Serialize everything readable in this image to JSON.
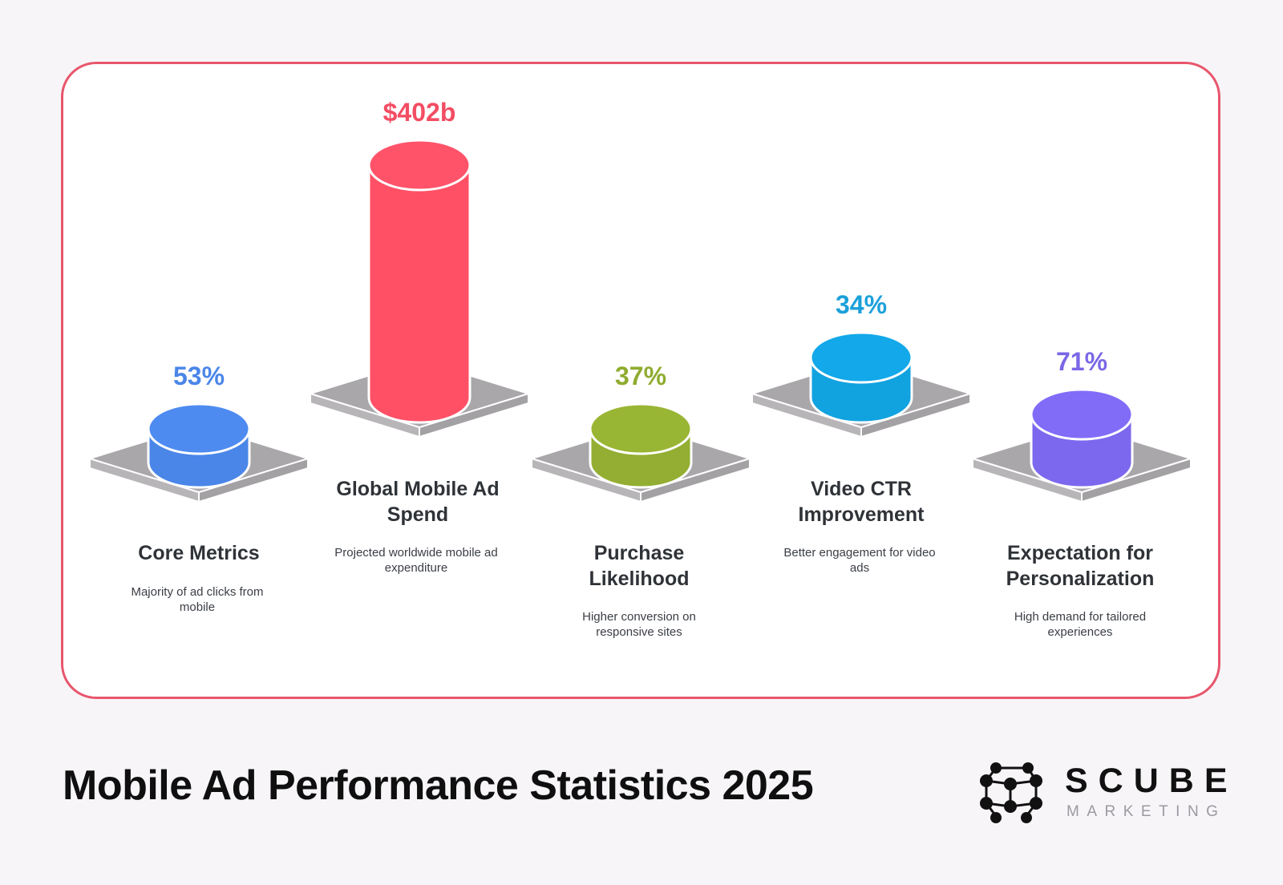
{
  "title": "Mobile Ad Performance Statistics 2025",
  "brand": {
    "name": "SCUBE",
    "sub": "MARKETING",
    "logo_icon": "molecule-cube-icon"
  },
  "chart_data": {
    "type": "bar",
    "style": "3d-cylinders-on-platforms",
    "categories": [
      "Core Metrics",
      "Global Mobile Ad Spend",
      "Purchase Likelihood",
      "Video CTR Improvement",
      "Expectation for Personalization"
    ],
    "value_labels": [
      "53%",
      "$402b",
      "37%",
      "34%",
      "71%"
    ],
    "values": [
      53,
      402,
      37,
      34,
      71
    ],
    "units": [
      "%",
      "billion USD",
      "%",
      "%",
      "%"
    ],
    "descriptions": [
      "Majority of ad clicks from mobile",
      "Projected worldwide mobile ad expenditure",
      "Higher conversion on responsive sites",
      "Better engagement for video ads",
      "High demand for tailored experiences"
    ],
    "colors": [
      "#4a86e8",
      "#ff5066",
      "#93ae32",
      "#11a2e0",
      "#7c68ee"
    ]
  },
  "columns": [
    {
      "value": "53%",
      "title_lines": [
        "Core Metrics"
      ],
      "desc_lines": [
        "Majority of ad clicks from",
        "mobile"
      ],
      "color": "#4a86e8",
      "text_color": "#4a86e8"
    },
    {
      "value": "$402b",
      "title_lines": [
        "Global Mobile Ad",
        "Spend"
      ],
      "desc_lines": [
        "Projected worldwide mobile ad",
        "expenditure"
      ],
      "color": "#ff5066",
      "text_color": "#f34d63"
    },
    {
      "value": "37%",
      "title_lines": [
        "Purchase",
        "Likelihood"
      ],
      "desc_lines": [
        "Higher conversion on",
        "responsive sites"
      ],
      "color": "#93ae32",
      "text_color": "#8fac2f"
    },
    {
      "value": "34%",
      "title_lines": [
        "Video CTR",
        "Improvement"
      ],
      "desc_lines": [
        "Better engagement for video",
        "ads"
      ],
      "color": "#11a2e0",
      "text_color": "#1ba0da"
    },
    {
      "value": "71%",
      "title_lines": [
        "Expectation for",
        "Personalization"
      ],
      "desc_lines": [
        "High demand for tailored",
        "experiences"
      ],
      "color": "#7c68ee",
      "text_color": "#7a68e6"
    }
  ]
}
